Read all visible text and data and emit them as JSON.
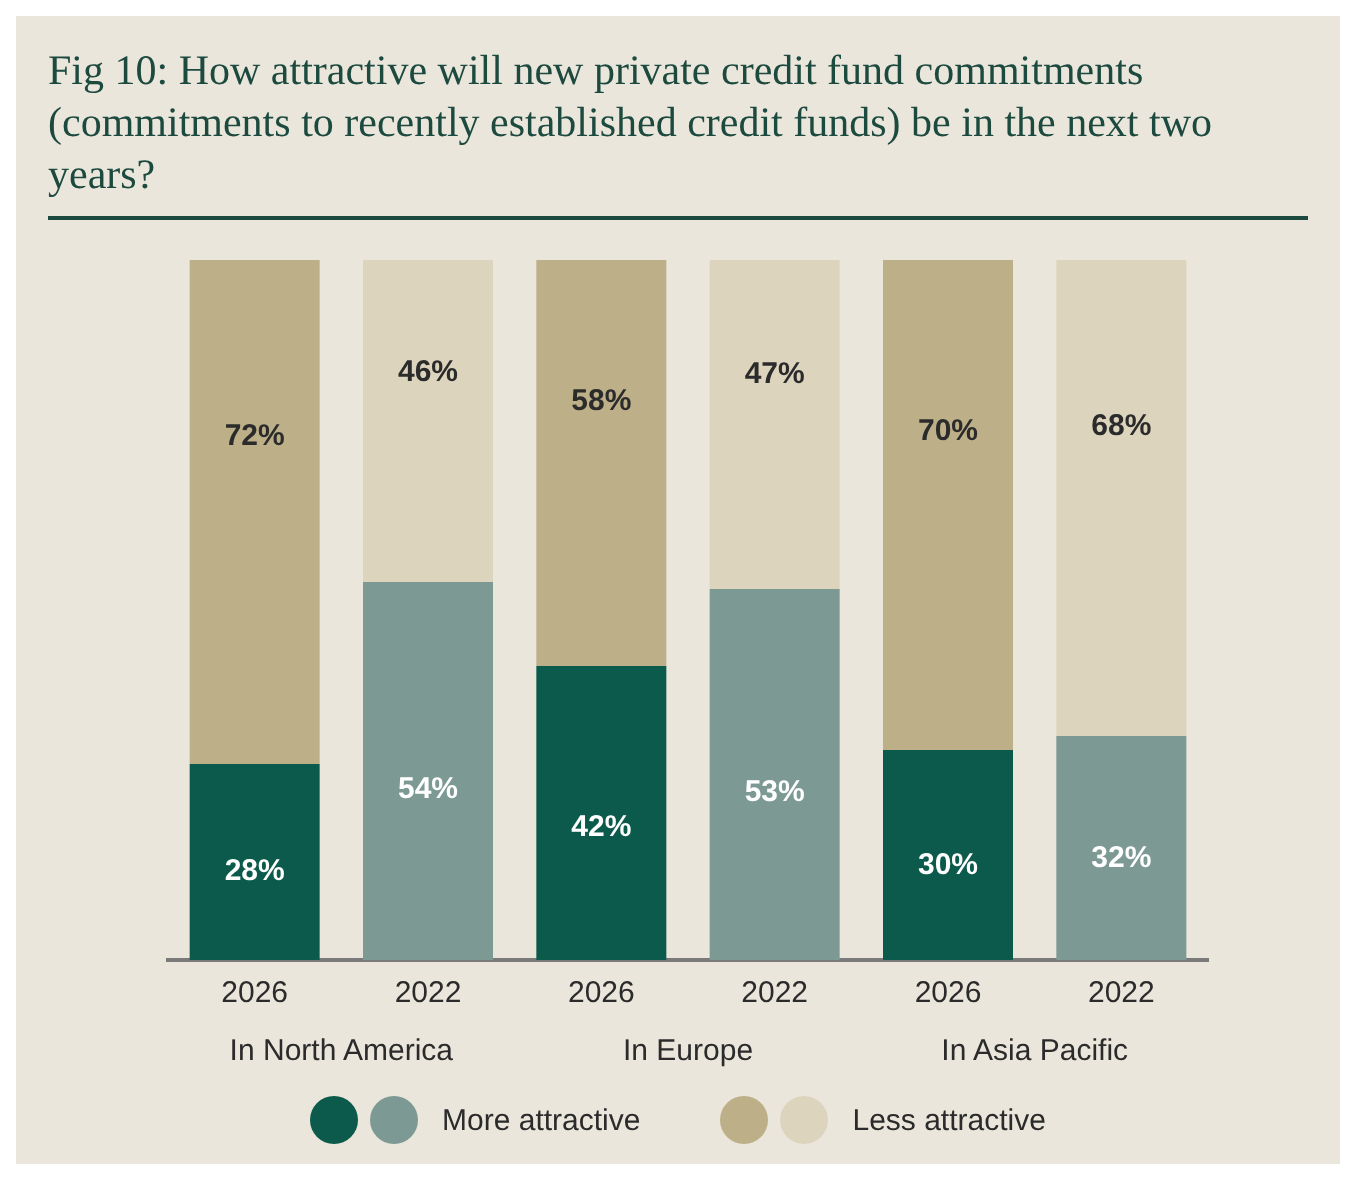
{
  "chart_data": {
    "type": "bar",
    "title": "Fig 10: How attractive will new private credit fund commitments (commitments to recently established credit funds) be in the next two years?",
    "categories": [
      "2026",
      "2022",
      "2026",
      "2022",
      "2026",
      "2022"
    ],
    "stacked": true,
    "tick_labels": "x",
    "legend": "bottom",
    "annotations": [
      "In North America",
      "In Europe",
      "In Asia Pacific"
    ],
    "series": [
      {
        "name": "More attractive",
        "colors": [
          "#0b5a4b",
          "#7c9a93",
          "#0b5a4b",
          "#7c9a93",
          "#0b5a4b",
          "#7c9a93"
        ],
        "values": [
          28,
          54,
          42,
          53,
          30,
          32
        ],
        "value_labels": [
          "28%",
          "54%",
          "42%",
          "53%",
          "30%",
          "32%"
        ]
      },
      {
        "name": "Less attractive",
        "colors": [
          "#bdb088",
          "#dcd4bd",
          "#bdb088",
          "#dcd4bd",
          "#bdb088",
          "#dcd4bd"
        ],
        "values": [
          72,
          46,
          58,
          47,
          70,
          68
        ],
        "value_labels": [
          "72%",
          "46%",
          "58%",
          "47%",
          "70%",
          "68%"
        ]
      }
    ]
  }
}
